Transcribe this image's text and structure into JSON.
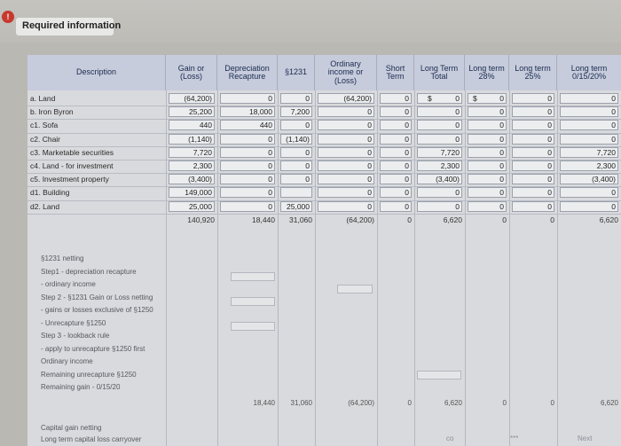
{
  "header": {
    "title": "Required information",
    "info_symbol": "!"
  },
  "columns": [
    "Description",
    "Gain or (Loss)",
    "Depreciation Recapture",
    "§1231",
    "Ordinary income or (Loss)",
    "Short Term",
    "Long Term Total",
    "Long term 28%",
    "Long term 25%",
    "Long term 0/15/20%"
  ],
  "rows": [
    {
      "label": "a. Land",
      "values": [
        "(64,200)",
        "0",
        "0",
        "(64,200)",
        "0",
        "0",
        "0",
        "0",
        "0"
      ]
    },
    {
      "label": "b. Iron Byron",
      "values": [
        "25,200",
        "18,000",
        "7,200",
        "0",
        "0",
        "0",
        "0",
        "0",
        "0"
      ]
    },
    {
      "label": "c1. Sofa",
      "values": [
        "440",
        "440",
        "0",
        "0",
        "0",
        "0",
        "0",
        "0",
        "0"
      ]
    },
    {
      "label": "c2. Chair",
      "values": [
        "(1,140)",
        "0",
        "(1,140)",
        "0",
        "0",
        "0",
        "0",
        "0",
        "0"
      ]
    },
    {
      "label": "c3. Marketable securities",
      "values": [
        "7,720",
        "0",
        "0",
        "0",
        "0",
        "7,720",
        "0",
        "0",
        "7,720"
      ]
    },
    {
      "label": "c4. Land - for investment",
      "values": [
        "2,300",
        "0",
        "0",
        "0",
        "0",
        "2,300",
        "0",
        "0",
        "2,300"
      ]
    },
    {
      "label": "c5. Investment property",
      "values": [
        "(3,400)",
        "0",
        "0",
        "0",
        "0",
        "(3,400)",
        "0",
        "0",
        "(3,400)"
      ]
    },
    {
      "label": "d1. Building",
      "values": [
        "149,000",
        "0",
        "",
        "0",
        "0",
        "0",
        "0",
        "0",
        "0"
      ]
    },
    {
      "label": "d2. Land",
      "values": [
        "25,000",
        "0",
        "25,000",
        "0",
        "0",
        "0",
        "0",
        "0",
        "0"
      ]
    }
  ],
  "totals": [
    "140,920",
    "18,440",
    "31,060",
    "(64,200)",
    "0",
    "6,620",
    "0",
    "0",
    "6,620"
  ],
  "netting_labels": [
    "§1231 netting",
    "Step1 - depreciation recapture",
    "- ordinary income",
    "Step 2 - §1231 Gain or Loss netting",
    "- gains or losses exclusive of §1250",
    "- Unrecapture §1250",
    "Step 3 - lookback rule",
    "- apply to unrecapture §1250 first",
    "Ordinary income",
    "Remaining unrecapture §1250",
    "Remaining gain - 0/15/20"
  ],
  "netting_totals": [
    "18,440",
    "31,060",
    "(64,200)",
    "0",
    "6,620",
    "0",
    "0",
    "6,620"
  ],
  "capital_labels": [
    "Capital gain netting",
    "Long term capital loss carryover"
  ],
  "dollar_sign": "$",
  "footer_hints": [
    "co",
    "***",
    "Next"
  ]
}
